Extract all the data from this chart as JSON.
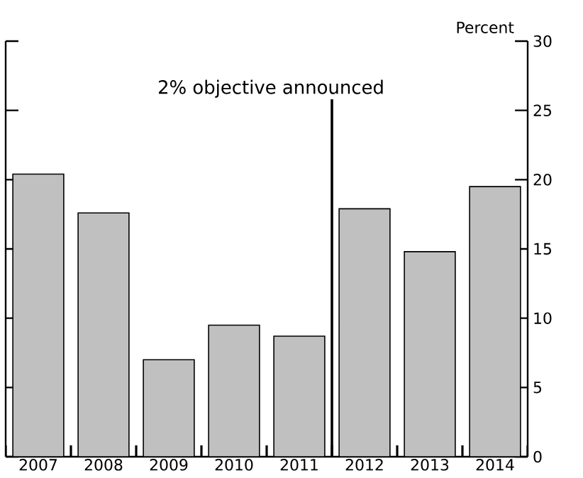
{
  "chart_data": {
    "type": "bar",
    "ylabel": "Percent",
    "x": [
      2007,
      2008,
      2009,
      2010,
      2011,
      2012,
      2013,
      2014
    ],
    "values": [
      20.4,
      17.6,
      7.0,
      9.5,
      8.7,
      17.9,
      14.8,
      19.5
    ],
    "color": "#c0c0c0",
    "xlim": [
      2006.5,
      2014.5
    ],
    "xticks": [
      {
        "value": 2006.5,
        "label": null
      },
      2007,
      {
        "value": 2007.5,
        "label": null
      },
      2008,
      {
        "value": 2008.5,
        "label": null
      },
      2009,
      {
        "value": 2009.5,
        "label": null
      },
      2010,
      {
        "value": 2010.5,
        "label": null
      },
      2011,
      {
        "value": 2011.5,
        "label": null
      },
      2012,
      {
        "value": 2012.5,
        "label": null
      },
      2013,
      {
        "value": 2013.5,
        "label": null
      },
      2014,
      {
        "value": 2014.5,
        "label": null
      }
    ],
    "ylim": [
      0,
      30
    ],
    "yticks": [
      0,
      5,
      10,
      15,
      20,
      25,
      30
    ],
    "ref_lines": [
      {
        "axis": "x",
        "value": 2011.5,
        "label": "2% objective announced",
        "color": "#000000"
      }
    ]
  }
}
